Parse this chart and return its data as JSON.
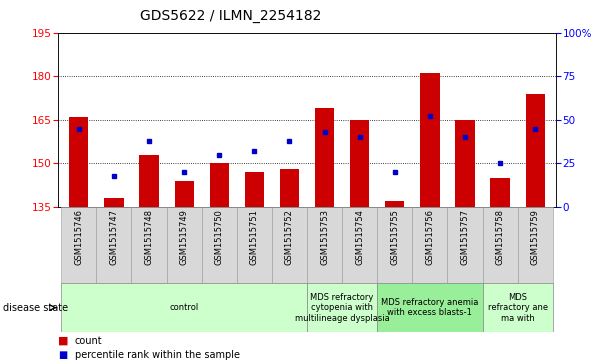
{
  "title": "GDS5622 / ILMN_2254182",
  "samples": [
    "GSM1515746",
    "GSM1515747",
    "GSM1515748",
    "GSM1515749",
    "GSM1515750",
    "GSM1515751",
    "GSM1515752",
    "GSM1515753",
    "GSM1515754",
    "GSM1515755",
    "GSM1515756",
    "GSM1515757",
    "GSM1515758",
    "GSM1515759"
  ],
  "counts": [
    166,
    138,
    153,
    144,
    150,
    147,
    148,
    169,
    165,
    137,
    181,
    165,
    145,
    174
  ],
  "percentile_ranks": [
    45,
    18,
    38,
    20,
    30,
    32,
    38,
    43,
    40,
    20,
    52,
    40,
    25,
    45
  ],
  "ylim_left": [
    135,
    195
  ],
  "ylim_right": [
    0,
    100
  ],
  "yticks_left": [
    135,
    150,
    165,
    180,
    195
  ],
  "yticks_right": [
    0,
    25,
    50,
    75,
    100
  ],
  "bar_color": "#cc0000",
  "marker_color": "#0000cc",
  "bar_bottom": 135,
  "background_color": "#ffffff",
  "plot_bg_color": "#ffffff",
  "disease_groups": [
    {
      "label": "control",
      "start": 0,
      "end": 7,
      "color": "#ccffcc"
    },
    {
      "label": "MDS refractory\ncytopenia with\nmultilineage dysplasia",
      "start": 7,
      "end": 9,
      "color": "#ccffcc"
    },
    {
      "label": "MDS refractory anemia\nwith excess blasts-1",
      "start": 9,
      "end": 12,
      "color": "#99ee99"
    },
    {
      "label": "MDS\nrefractory ane\nma with",
      "start": 12,
      "end": 14,
      "color": "#ccffcc"
    }
  ],
  "xlabel_disease": "disease state",
  "legend_count": "count",
  "legend_percentile": "percentile rank within the sample",
  "title_fontsize": 10,
  "tick_fontsize": 7.5,
  "sample_fontsize": 6,
  "disease_fontsize": 6,
  "legend_fontsize": 7
}
